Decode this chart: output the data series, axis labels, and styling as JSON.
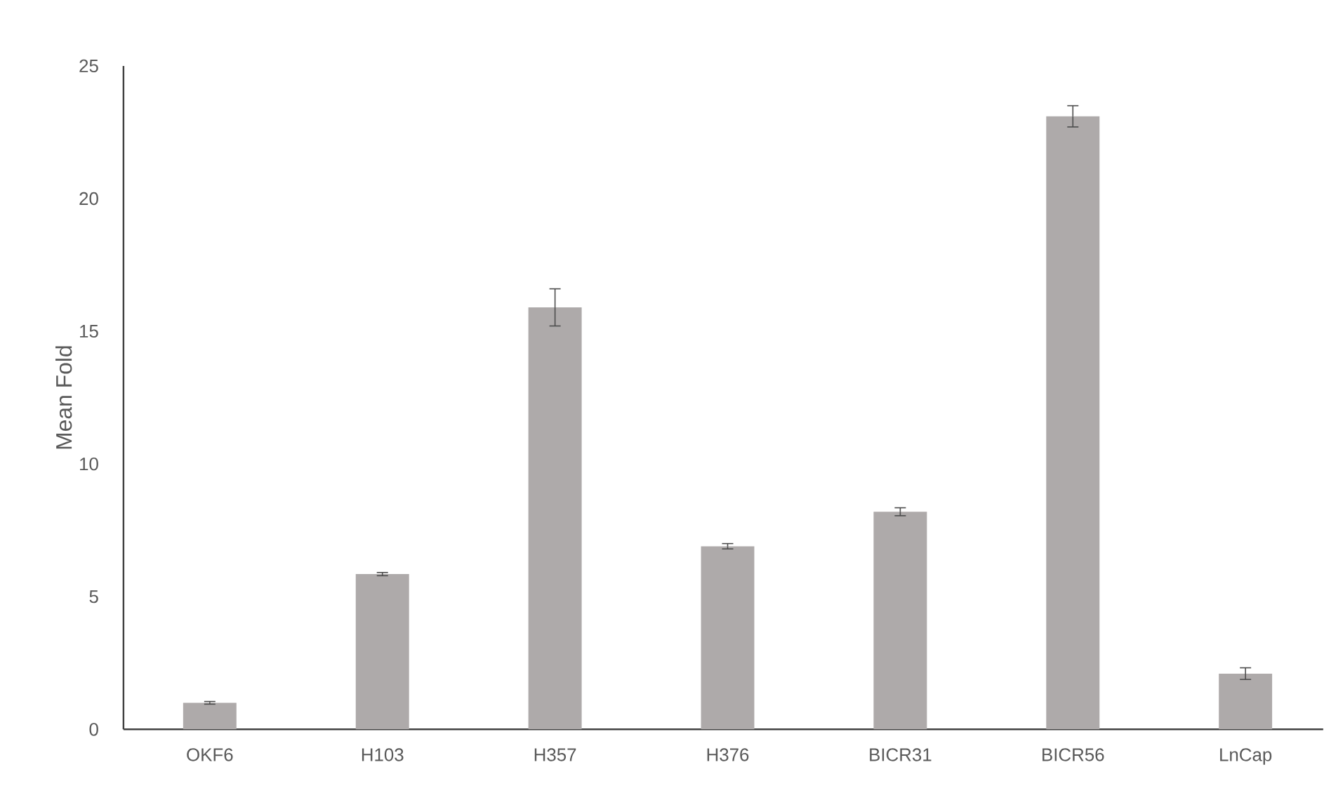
{
  "chart_data": {
    "type": "bar",
    "ylabel": "Mean Fold",
    "categories": [
      "OKF6",
      "H103",
      "H357",
      "H376",
      "BICR31",
      "BICR56",
      "LnCap"
    ],
    "values": [
      1.0,
      5.85,
      15.9,
      6.9,
      8.2,
      23.1,
      2.1
    ],
    "errors": [
      0.05,
      0.06,
      0.7,
      0.1,
      0.15,
      0.4,
      0.22
    ],
    "color": "#aeaaaa",
    "ylim": [
      0,
      25
    ],
    "yticks": [
      0,
      5,
      10,
      15,
      20,
      25
    ],
    "grid": false
  }
}
